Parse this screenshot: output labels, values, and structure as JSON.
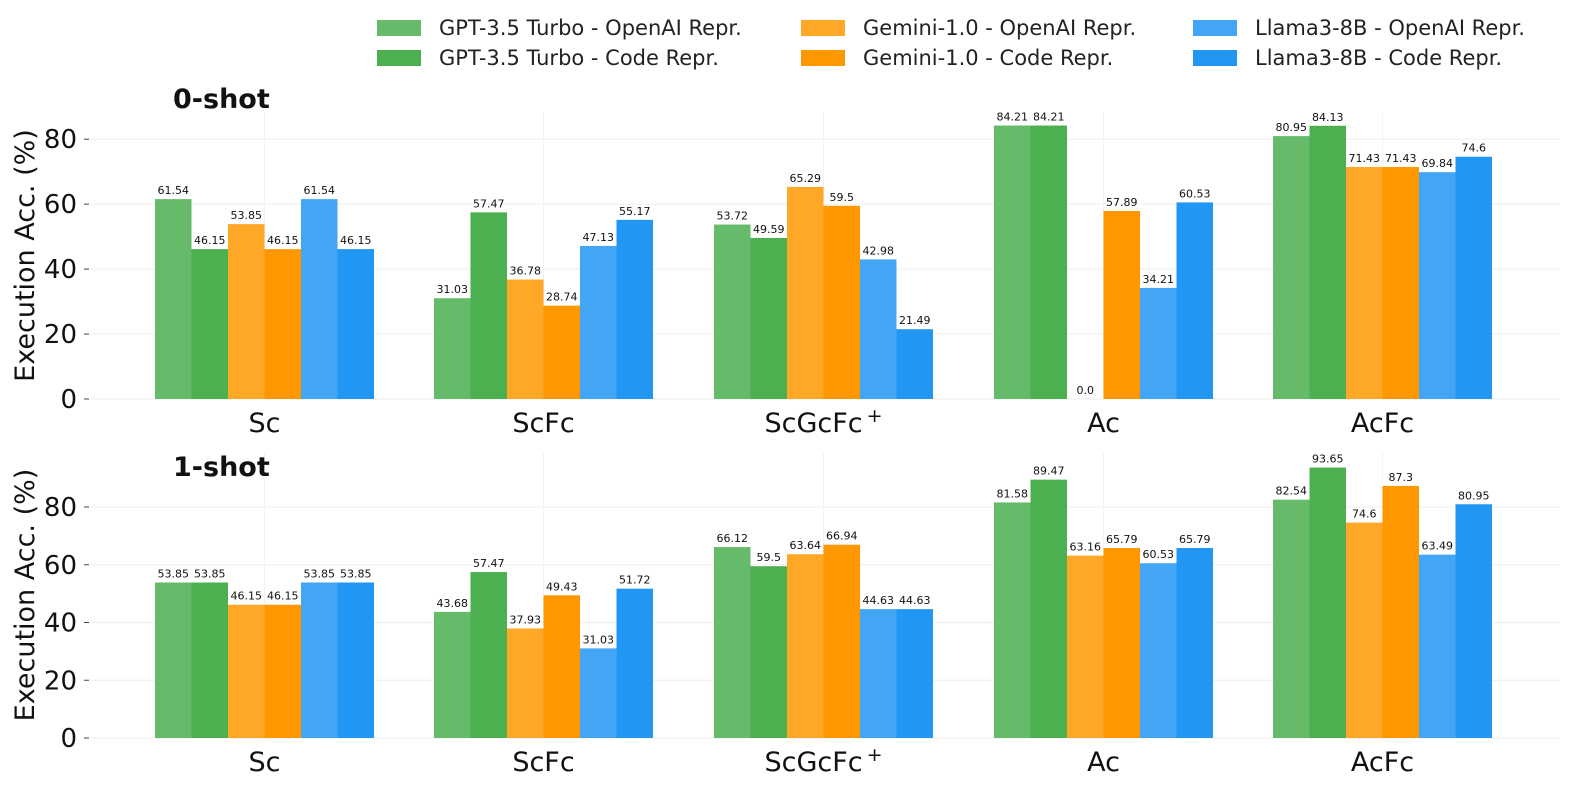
{
  "chart_data": [
    {
      "type": "bar",
      "title": "0-shot",
      "ylabel": "Execution Acc. (%)",
      "xlabel": "",
      "ylim": [
        0,
        90
      ],
      "yticks": [
        "0",
        "20",
        "40",
        "60",
        "80"
      ],
      "grid": true,
      "categories": [
        "Sc",
        "ScFc",
        "ScGcFc",
        "Ac",
        "AcFc"
      ],
      "category_superscripts": [
        "",
        "",
        "+",
        "",
        ""
      ],
      "series": [
        {
          "name": "GPT-3.5 Turbo - OpenAI Repr.",
          "values": [
            61.54,
            31.03,
            53.72,
            84.21,
            80.95
          ],
          "labels": [
            "61.54",
            "31.03",
            "53.72",
            "84.21",
            "80.95"
          ]
        },
        {
          "name": "GPT-3.5 Turbo - Code Repr.",
          "values": [
            46.15,
            57.47,
            49.59,
            84.21,
            84.13
          ],
          "labels": [
            "46.15",
            "57.47",
            "49.59",
            "84.21",
            "84.13"
          ]
        },
        {
          "name": "Gemini-1.0 - OpenAI Repr.",
          "values": [
            53.85,
            36.78,
            65.29,
            0.0,
            71.43
          ],
          "labels": [
            "53.85",
            "36.78",
            "65.29",
            "0.0",
            "71.43"
          ]
        },
        {
          "name": "Gemini-1.0 - Code Repr.",
          "values": [
            46.15,
            28.74,
            59.5,
            57.89,
            71.43
          ],
          "labels": [
            "46.15",
            "28.74",
            "59.5",
            "57.89",
            "71.43"
          ]
        },
        {
          "name": "Llama3-8B - OpenAI Repr.",
          "values": [
            61.54,
            47.13,
            42.98,
            34.21,
            69.84
          ],
          "labels": [
            "61.54",
            "47.13",
            "42.98",
            "34.21",
            "69.84"
          ]
        },
        {
          "name": "Llama3-8B - Code Repr.",
          "values": [
            46.15,
            55.17,
            21.49,
            60.53,
            74.6
          ],
          "labels": [
            "46.15",
            "55.17",
            "21.49",
            "60.53",
            "74.6"
          ]
        }
      ]
    },
    {
      "type": "bar",
      "title": "1-shot",
      "ylabel": "Execution Acc. (%)",
      "xlabel": "",
      "ylim": [
        0,
        100
      ],
      "yticks": [
        "0",
        "20",
        "40",
        "60",
        "80"
      ],
      "grid": true,
      "categories": [
        "Sc",
        "ScFc",
        "ScGcFc",
        "Ac",
        "AcFc"
      ],
      "category_superscripts": [
        "",
        "",
        "+",
        "",
        ""
      ],
      "series": [
        {
          "name": "GPT-3.5 Turbo - OpenAI Repr.",
          "values": [
            53.85,
            43.68,
            66.12,
            81.58,
            82.54
          ],
          "labels": [
            "53.85",
            "43.68",
            "66.12",
            "81.58",
            "82.54"
          ]
        },
        {
          "name": "GPT-3.5 Turbo - Code Repr.",
          "values": [
            53.85,
            57.47,
            59.5,
            89.47,
            93.65
          ],
          "labels": [
            "53.85",
            "57.47",
            "59.5",
            "89.47",
            "93.65"
          ]
        },
        {
          "name": "Gemini-1.0 - OpenAI Repr.",
          "values": [
            46.15,
            37.93,
            63.64,
            63.16,
            74.6
          ],
          "labels": [
            "46.15",
            "37.93",
            "63.64",
            "63.16",
            "74.6"
          ]
        },
        {
          "name": "Gemini-1.0 - Code Repr.",
          "values": [
            46.15,
            49.43,
            66.94,
            65.79,
            87.3
          ],
          "labels": [
            "46.15",
            "49.43",
            "66.94",
            "65.79",
            "87.3"
          ]
        },
        {
          "name": "Llama3-8B - OpenAI Repr.",
          "values": [
            53.85,
            31.03,
            44.63,
            60.53,
            63.49
          ],
          "labels": [
            "53.85",
            "31.03",
            "44.63",
            "60.53",
            "63.49"
          ]
        },
        {
          "name": "Llama3-8B - Code Repr.",
          "values": [
            53.85,
            51.72,
            44.63,
            65.79,
            80.95
          ],
          "labels": [
            "53.85",
            "51.72",
            "44.63",
            "65.79",
            "80.95"
          ]
        }
      ]
    }
  ],
  "legend": {
    "placement": "top-right",
    "items": [
      {
        "label": "GPT-3.5 Turbo - OpenAI Repr.",
        "color": "#66bb6a"
      },
      {
        "label": "GPT-3.5 Turbo - Code Repr.",
        "color": "#4caf50"
      },
      {
        "label": "Gemini-1.0 - OpenAI Repr.",
        "color": "#ffa726"
      },
      {
        "label": "Gemini-1.0 - Code Repr.",
        "color": "#ff9800"
      },
      {
        "label": "Llama3-8B - OpenAI Repr.",
        "color": "#42a5f5"
      },
      {
        "label": "Llama3-8B - Code Repr.",
        "color": "#2196f3"
      }
    ]
  }
}
